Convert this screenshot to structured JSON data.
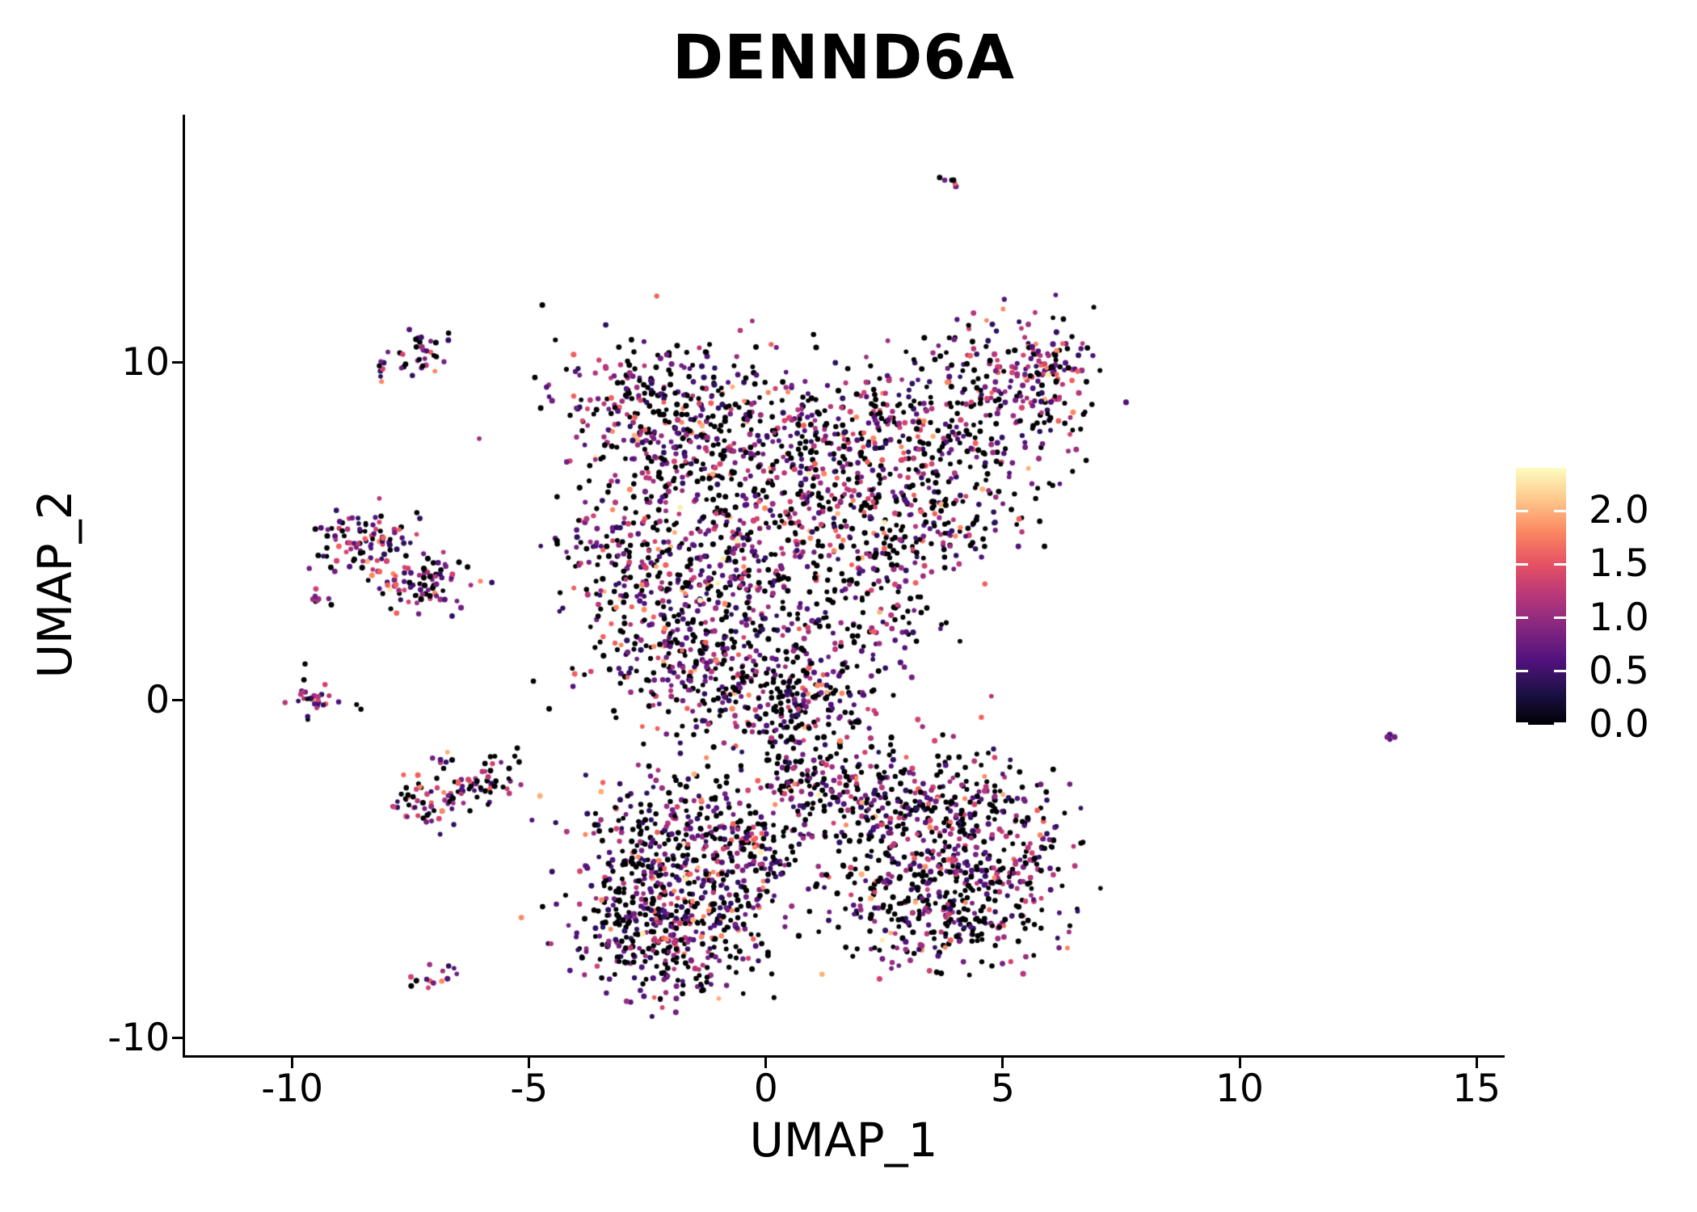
{
  "title": "DENND6A",
  "chart_data": {
    "type": "scatter",
    "title": "DENND6A",
    "xlabel": "UMAP_1",
    "ylabel": "UMAP_2",
    "xlim": [
      -12.28,
      15.56
    ],
    "ylim": [
      -10.53,
      17.34
    ],
    "grid": false,
    "x_ticks": [
      {
        "label": "-10",
        "value": -10
      },
      {
        "label": "-5",
        "value": -5
      },
      {
        "label": "0",
        "value": 0
      },
      {
        "label": "5",
        "value": 5
      },
      {
        "label": "10",
        "value": 10
      },
      {
        "label": "15",
        "value": 15
      }
    ],
    "y_ticks": [
      {
        "label": "-10",
        "value": -10
      },
      {
        "label": "0",
        "value": 0
      },
      {
        "label": "10",
        "value": 10
      }
    ],
    "colorbar": {
      "position": "right",
      "min": 0,
      "max": 2.4,
      "ticks": [
        {
          "label": "0.0",
          "value": 0.0
        },
        {
          "label": "0.5",
          "value": 0.5
        },
        {
          "label": "1.0",
          "value": 1.0
        },
        {
          "label": "1.5",
          "value": 1.5
        },
        {
          "label": "2.0",
          "value": 2.0
        }
      ],
      "gradient_stops": [
        {
          "pos": 0.0,
          "hex": "#000004"
        },
        {
          "pos": 0.125,
          "hex": "#1d1147"
        },
        {
          "pos": 0.25,
          "hex": "#51127c"
        },
        {
          "pos": 0.375,
          "hex": "#822681"
        },
        {
          "pos": 0.5,
          "hex": "#b73779"
        },
        {
          "pos": 0.625,
          "hex": "#e65164"
        },
        {
          "pos": 0.75,
          "hex": "#fb8761"
        },
        {
          "pos": 0.875,
          "hex": "#fec68a"
        },
        {
          "pos": 1.0,
          "hex": "#fcfdbf"
        }
      ]
    },
    "point_radius_px": 3.2,
    "black_hex": "#000004",
    "colored_palette": [
      {
        "hex": "#2d1160",
        "w": 0.17
      },
      {
        "hex": "#51127c",
        "w": 0.2
      },
      {
        "hex": "#721f81",
        "w": 0.16
      },
      {
        "hex": "#9c2e7f",
        "w": 0.13
      },
      {
        "hex": "#b73779",
        "w": 0.12
      },
      {
        "hex": "#d3436e",
        "w": 0.09
      },
      {
        "hex": "#f1605d",
        "w": 0.06
      },
      {
        "hex": "#fb8861",
        "w": 0.04
      },
      {
        "hex": "#feb078",
        "w": 0.02
      },
      {
        "hex": "#fcecae",
        "w": 0.01
      }
    ],
    "clusters": [
      {
        "cx": 3.87,
        "cy": 15.53,
        "sx": 0.14,
        "sy": 0.19,
        "n": 6,
        "black": 0.3
      },
      {
        "cx": -8.1,
        "cy": 9.86,
        "sx": 0.14,
        "sy": 0.19,
        "n": 7,
        "black": 0.25
      },
      {
        "cx": -7.18,
        "cy": 10.29,
        "sx": 0.3,
        "sy": 0.33,
        "n": 26,
        "black": 0.35
      },
      {
        "cx": -7.6,
        "cy": 10.08,
        "sx": 0.1,
        "sy": 0.12,
        "n": 5,
        "black": 0.5
      },
      {
        "cx": -8.41,
        "cy": 4.59,
        "sx": 0.55,
        "sy": 0.45,
        "n": 95,
        "black": 0.35
      },
      {
        "cx": -7.21,
        "cy": 3.52,
        "sx": 0.5,
        "sy": 0.42,
        "n": 85,
        "black": 0.35
      },
      {
        "cx": -9.38,
        "cy": 2.99,
        "sx": 0.13,
        "sy": 0.15,
        "n": 7,
        "black": 0.3
      },
      {
        "cx": -9.55,
        "cy": 0.17,
        "sx": 0.32,
        "sy": 0.3,
        "n": 28,
        "black": 0.25
      },
      {
        "cx": -7.22,
        "cy": -3.18,
        "sx": 0.34,
        "sy": 0.38,
        "n": 45,
        "black": 0.4
      },
      {
        "cx": -6.36,
        "cy": -2.7,
        "sx": 0.37,
        "sy": 0.33,
        "n": 40,
        "black": 0.4
      },
      {
        "cx": -5.63,
        "cy": -2.18,
        "sx": 0.24,
        "sy": 0.24,
        "n": 20,
        "black": 0.45
      },
      {
        "cx": -6.88,
        "cy": -1.75,
        "sx": 0.12,
        "sy": 0.15,
        "n": 7,
        "black": 0.2
      },
      {
        "cx": -7.13,
        "cy": -8.16,
        "sx": 0.28,
        "sy": 0.2,
        "n": 14,
        "black": 0.4
      },
      {
        "cx": -2.27,
        "cy": 8.42,
        "sx": 1.05,
        "sy": 1.2,
        "n": 330,
        "black": 0.45
      },
      {
        "cx": 0.03,
        "cy": 7.46,
        "sx": 1.28,
        "sy": 1.32,
        "n": 230,
        "black": 0.5
      },
      {
        "cx": 2.34,
        "cy": 7.34,
        "sx": 1.11,
        "sy": 1.32,
        "n": 270,
        "black": 0.45
      },
      {
        "cx": 4.72,
        "cy": 8.66,
        "sx": 0.94,
        "sy": 1.44,
        "n": 240,
        "black": 0.45
      },
      {
        "cx": 5.95,
        "cy": 9.69,
        "sx": 0.48,
        "sy": 0.84,
        "n": 90,
        "black": 0.35
      },
      {
        "cx": -3.17,
        "cy": 4.0,
        "sx": 0.72,
        "sy": 1.32,
        "n": 140,
        "black": 0.45
      },
      {
        "cx": -1.16,
        "cy": 4.23,
        "sx": 0.94,
        "sy": 1.32,
        "n": 190,
        "black": 0.45
      },
      {
        "cx": 0.72,
        "cy": 4.59,
        "sx": 0.94,
        "sy": 1.32,
        "n": 190,
        "black": 0.45
      },
      {
        "cx": -1.64,
        "cy": 1.6,
        "sx": 0.94,
        "sy": 1.2,
        "n": 240,
        "black": 0.42
      },
      {
        "cx": -0.48,
        "cy": 0.22,
        "sx": 0.82,
        "sy": 0.91,
        "n": 150,
        "black": 0.45
      },
      {
        "cx": 2.0,
        "cy": 2.68,
        "sx": 0.94,
        "sy": 1.32,
        "n": 140,
        "black": 0.5
      },
      {
        "cx": 0.63,
        "cy": -1.46,
        "sx": 0.43,
        "sy": 1.0,
        "n": 80,
        "black": 0.6
      },
      {
        "cx": 1.31,
        "cy": -0.02,
        "sx": 0.65,
        "sy": 0.84,
        "n": 90,
        "black": 0.5
      },
      {
        "cx": 3.45,
        "cy": 5.43,
        "sx": 0.77,
        "sy": 1.08,
        "n": 120,
        "black": 0.5
      },
      {
        "cx": -2.52,
        "cy": -4.62,
        "sx": 0.94,
        "sy": 1.08,
        "n": 230,
        "black": 0.42
      },
      {
        "cx": -1.3,
        "cy": -6.0,
        "sx": 0.94,
        "sy": 1.08,
        "n": 230,
        "black": 0.42
      },
      {
        "cx": -2.56,
        "cy": -6.96,
        "sx": 0.82,
        "sy": 0.84,
        "n": 170,
        "black": 0.42
      },
      {
        "cx": 0.0,
        "cy": -4.66,
        "sx": 0.65,
        "sy": 0.77,
        "n": 80,
        "black": 0.5
      },
      {
        "cx": -1.09,
        "cy": -3.3,
        "sx": 0.65,
        "sy": 0.67,
        "n": 80,
        "black": 0.5
      },
      {
        "cx": -1.84,
        "cy": -8.09,
        "sx": 0.43,
        "sy": 0.43,
        "n": 40,
        "black": 0.45
      },
      {
        "cx": 0.72,
        "cy": -2.82,
        "sx": 0.34,
        "sy": 0.72,
        "n": 40,
        "black": 0.6
      },
      {
        "cx": 3.45,
        "cy": -3.18,
        "sx": 1.11,
        "sy": 0.91,
        "n": 190,
        "black": 0.45
      },
      {
        "cx": 4.84,
        "cy": -4.66,
        "sx": 0.94,
        "sy": 1.32,
        "n": 240,
        "black": 0.4
      },
      {
        "cx": 2.93,
        "cy": -5.1,
        "sx": 0.94,
        "sy": 1.32,
        "n": 190,
        "black": 0.55
      },
      {
        "cx": 3.96,
        "cy": -6.58,
        "sx": 0.94,
        "sy": 0.77,
        "n": 140,
        "black": 0.45
      },
      {
        "cx": 2.0,
        "cy": -3.23,
        "sx": 0.38,
        "sy": 0.67,
        "n": 50,
        "black": 0.5
      },
      {
        "cx": 1.57,
        "cy": -2.22,
        "sx": 0.31,
        "sy": 0.6,
        "n": 30,
        "black": 0.65
      },
      {
        "cx": 13.19,
        "cy": -1.15,
        "sx": 0.12,
        "sy": 0.12,
        "n": 4,
        "black": 0.25
      }
    ],
    "strays": [
      {
        "x": -8.55,
        "y": -0.26
      },
      {
        "x": -5.25,
        "y": -1.41
      },
      {
        "x": -4.91,
        "y": 0.57
      },
      {
        "x": -4.23,
        "y": -5.77
      },
      {
        "x": -0.48,
        "y": -8.68
      },
      {
        "x": 1.06,
        "y": 10.45
      },
      {
        "x": -3.21,
        "y": -0.31
      },
      {
        "x": -9.73,
        "y": 1.08
      },
      {
        "x": 0.17,
        "y": -8.8
      }
    ]
  }
}
